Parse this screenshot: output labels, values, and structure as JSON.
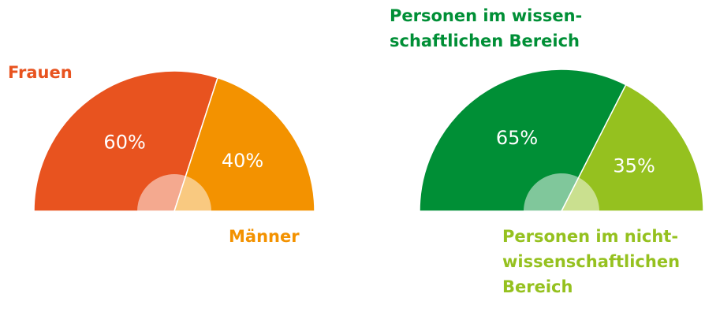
{
  "chart_data": [
    {
      "type": "semi-donut",
      "categories": [
        "Frauen",
        "Männer"
      ],
      "values": [
        60,
        40
      ],
      "value_labels": [
        "60%",
        "40%"
      ],
      "colors": [
        "#e8531f",
        "#f39200"
      ]
    },
    {
      "type": "semi-donut",
      "categories": [
        "Personen im wissen-\nschaftlichen Bereich",
        "Personen im nicht-\nwissenschaftlichen\nBereich"
      ],
      "values": [
        65,
        35
      ],
      "value_labels": [
        "65%",
        "35%"
      ],
      "colors": [
        "#008f36",
        "#95c11f"
      ]
    }
  ]
}
